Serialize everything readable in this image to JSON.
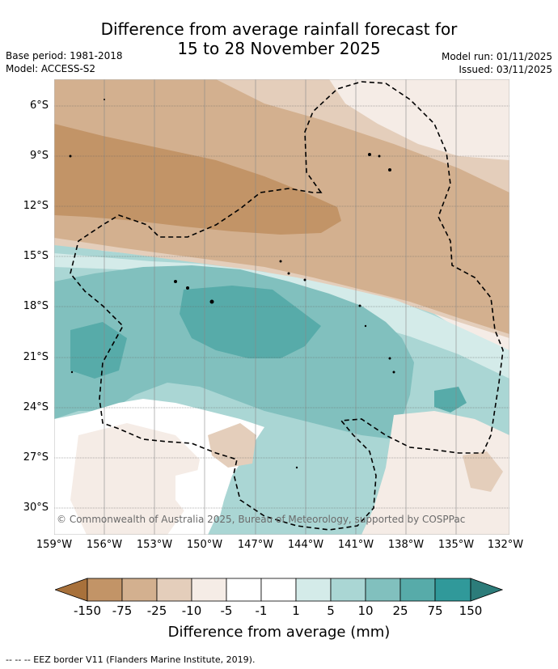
{
  "title": {
    "line1": "Difference from average rainfall forecast for",
    "line2": "15 to 28 November 2025"
  },
  "meta": {
    "base_period": "Base period: 1981-2018",
    "model": "Model: ACCESS-S2",
    "model_run": "Model run: 01/11/2025",
    "issued": "Issued: 03/11/2025"
  },
  "map": {
    "lat_labels": [
      "6°S",
      "9°S",
      "12°S",
      "15°S",
      "18°S",
      "21°S",
      "24°S",
      "27°S",
      "30°S"
    ],
    "lon_labels": [
      "159°W",
      "156°W",
      "153°W",
      "150°W",
      "147°W",
      "144°W",
      "141°W",
      "138°W",
      "135°W",
      "132°W"
    ],
    "copyright": "© Commonwealth of Australia 2025, Bureau of Meteorology, supported by COSPPac"
  },
  "colorbar": {
    "labels": [
      "-150",
      "-75",
      "-25",
      "-10",
      "-5",
      "-1",
      "1",
      "5",
      "10",
      "25",
      "75",
      "150"
    ],
    "colors": [
      "#a8713b",
      "#c29467",
      "#d3b08f",
      "#e4cebb",
      "#f5ece6",
      "#ffffff",
      "#d4ebe9",
      "#aad6d4",
      "#81c0be",
      "#57aba9",
      "#30999a",
      "#2c7c7a"
    ],
    "title": "Difference from average (mm)"
  },
  "footnote": "-- -- -- EEZ border V11 (Flanders Marine Institute, 2019)."
}
